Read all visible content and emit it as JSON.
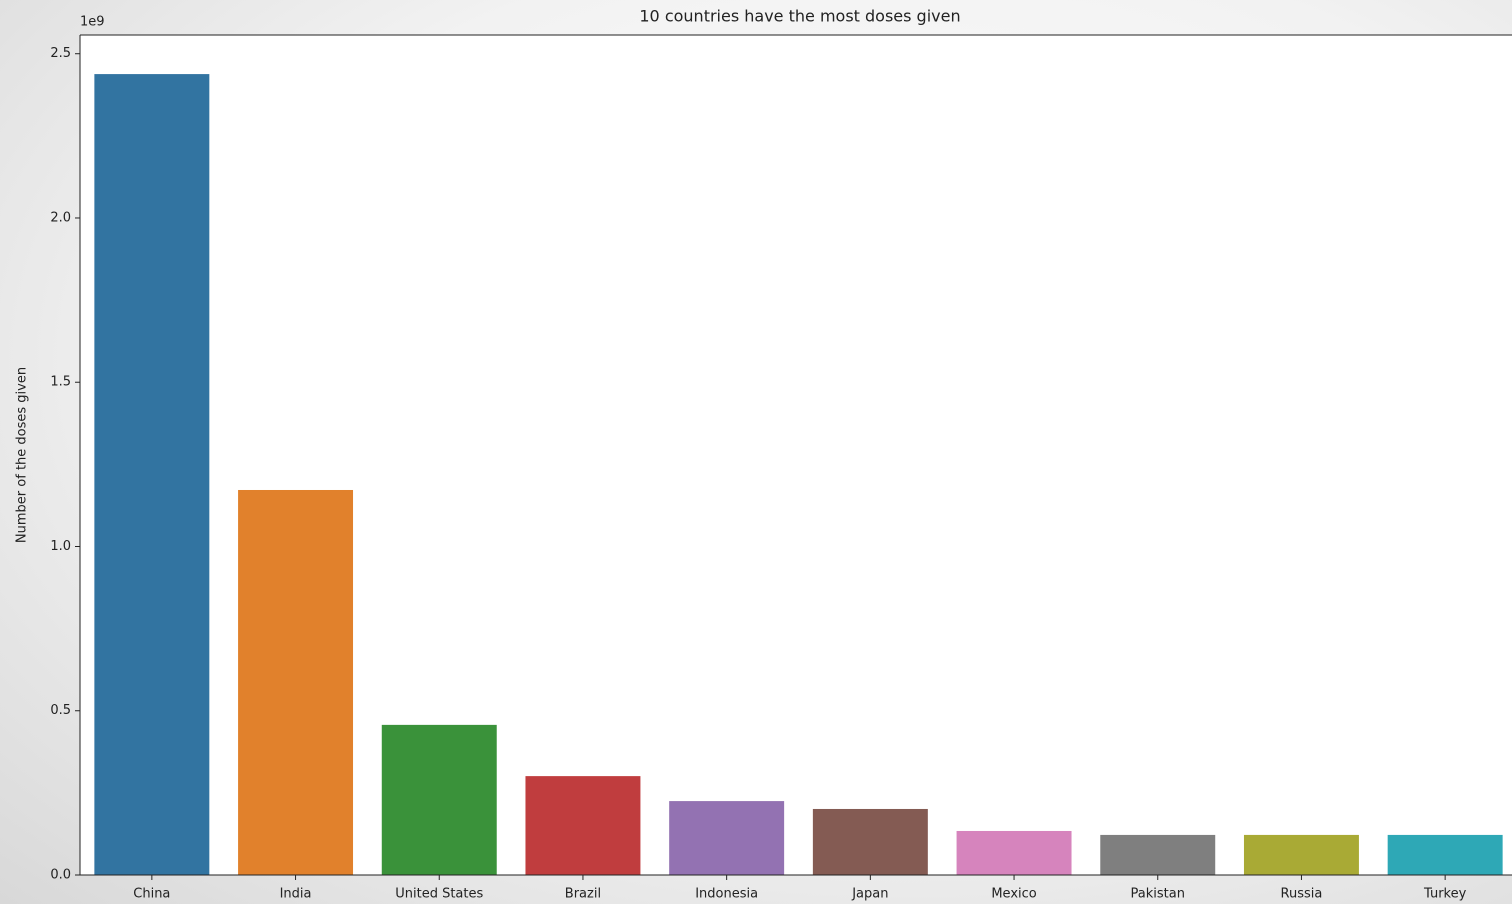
{
  "chart_data": {
    "type": "bar",
    "title": "10 countries have the most doses given",
    "y_label": "Number of the doses given",
    "y_offset_label": "1e9",
    "categories": [
      "China",
      "India",
      "United States",
      "Brazil",
      "Indonesia",
      "Japan",
      "Mexico",
      "Pakistan",
      "Russia",
      "Turkey"
    ],
    "values": [
      2.438,
      1.172,
      0.457,
      0.301,
      0.225,
      0.201,
      0.134,
      0.122,
      0.122,
      0.122
    ],
    "colors": [
      "#3274a1",
      "#e1812c",
      "#3a923a",
      "#c03d3e",
      "#9372b2",
      "#845b53",
      "#d684bd",
      "#7f7f7f",
      "#a9aa35",
      "#2ea8b6"
    ],
    "ylim": [
      0,
      2.557
    ],
    "yticks": [
      {
        "value": 0,
        "label": "0.0"
      },
      {
        "value": 0.5,
        "label": "0.5"
      },
      {
        "value": 1,
        "label": "1.0"
      },
      {
        "value": 1.5,
        "label": "1.5"
      },
      {
        "value": 2,
        "label": "2.0"
      },
      {
        "value": 2.5,
        "label": "2.5"
      }
    ],
    "grid": false
  }
}
